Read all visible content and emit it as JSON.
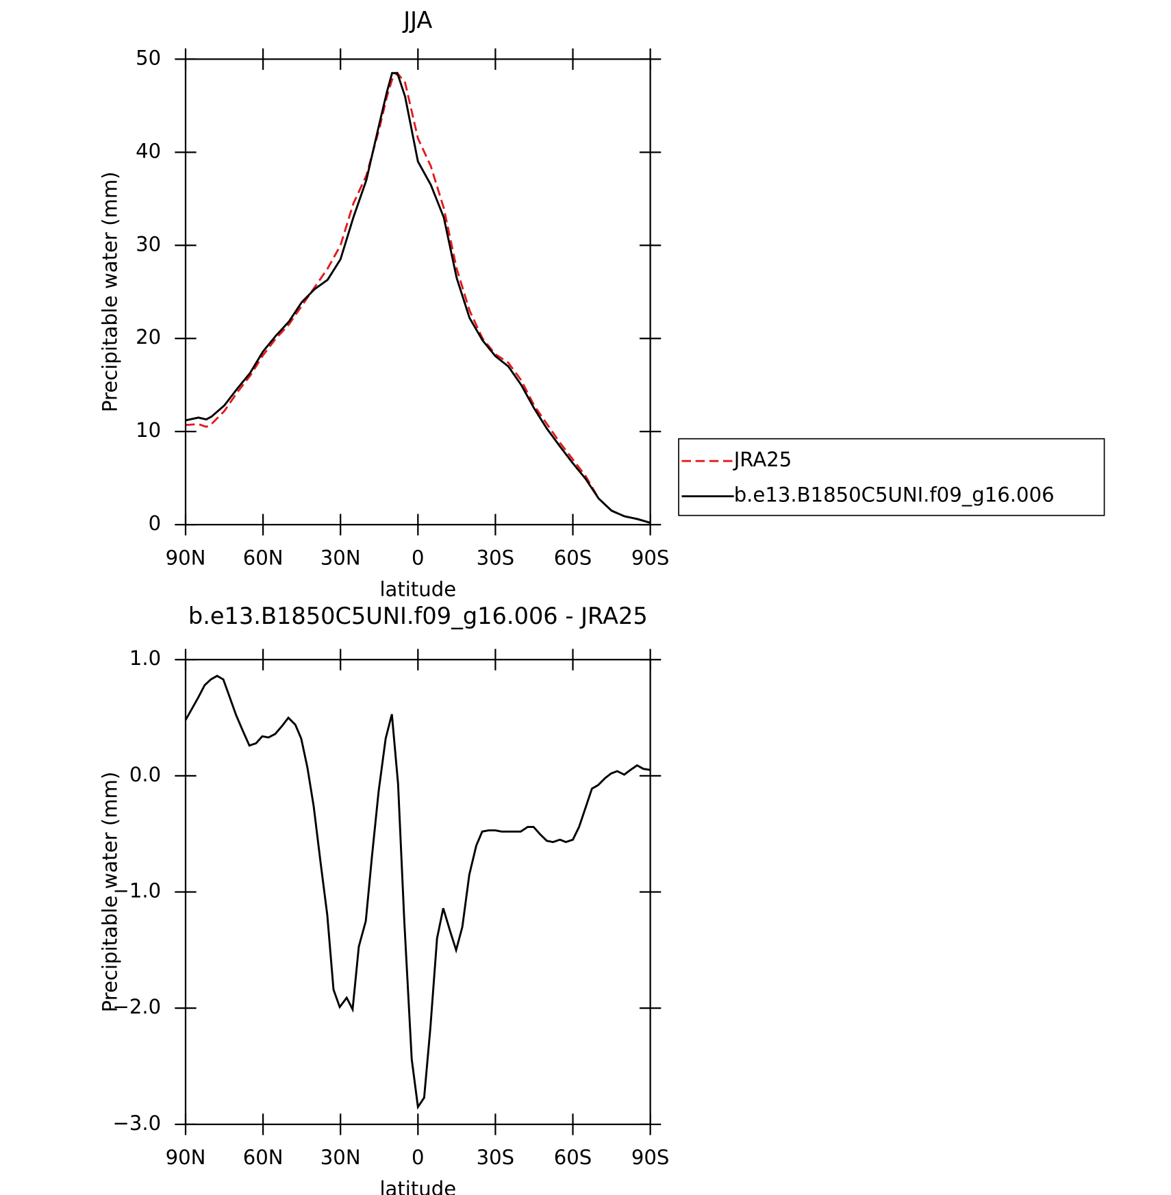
{
  "chart_data": [
    {
      "type": "line",
      "title": "JJA",
      "xlabel": "latitude",
      "ylabel": "Precipitable water (mm)",
      "x": [
        90,
        85,
        82,
        80,
        75,
        70,
        65,
        60,
        55,
        50,
        45,
        40,
        35,
        30,
        25,
        20,
        15,
        12,
        10,
        8,
        5,
        0,
        -5,
        -10,
        -15,
        -20,
        -25,
        -30,
        -35,
        -40,
        -45,
        -50,
        -55,
        -60,
        -65,
        -70,
        -75,
        -80,
        -85,
        -90
      ],
      "series": [
        {
          "name": "JRA25",
          "color": "#e41a1c",
          "dash": true,
          "values": [
            10.7,
            10.8,
            10.5,
            10.8,
            12.2,
            14.2,
            16.0,
            18.2,
            20.0,
            21.5,
            23.5,
            25.5,
            27.5,
            30.0,
            34.5,
            37.5,
            42.5,
            46.0,
            47.8,
            48.5,
            47.5,
            41.5,
            38.5,
            34.0,
            27.5,
            23.0,
            20.0,
            18.3,
            17.4,
            15.5,
            12.8,
            10.8,
            8.8,
            7.0,
            5.2,
            2.8,
            1.5,
            0.9,
            0.6,
            0.2
          ]
        },
        {
          "name": "b.e13.B1850C5UNI.f09_g16.006",
          "color": "#000000",
          "dash": false,
          "values": [
            11.2,
            11.5,
            11.3,
            11.6,
            12.8,
            14.6,
            16.3,
            18.6,
            20.3,
            21.8,
            23.9,
            25.3,
            26.3,
            28.5,
            33.0,
            37.0,
            43.0,
            46.5,
            48.5,
            48.5,
            46.0,
            39.0,
            36.5,
            33.0,
            26.5,
            22.2,
            19.8,
            18.1,
            17.0,
            15.0,
            12.5,
            10.3,
            8.4,
            6.6,
            4.9,
            2.8,
            1.5,
            0.9,
            0.6,
            0.2
          ]
        }
      ],
      "xlim": [
        90,
        -90
      ],
      "xticks": [
        {
          "value": 90,
          "label": "90N"
        },
        {
          "value": 60,
          "label": "60N"
        },
        {
          "value": 30,
          "label": "30N"
        },
        0,
        {
          "value": -30,
          "label": "30S"
        },
        {
          "value": -60,
          "label": "60S"
        },
        {
          "value": -90,
          "label": "90S"
        }
      ],
      "ylim": [
        0,
        50
      ],
      "yticks": [
        0,
        10,
        20,
        30,
        40,
        50
      ],
      "legend": "right"
    },
    {
      "type": "line",
      "title": "b.e13.B1850C5UNI.f09_g16.006 - JRA25",
      "xlabel": "latitude",
      "ylabel": "Precipitable water (mm)",
      "x": [
        90,
        85.2,
        82.6,
        80.2,
        77.8,
        75.4,
        72.8,
        70.4,
        67.7,
        65.3,
        62.7,
        60.3,
        57.9,
        55.3,
        52.6,
        50.2,
        47.5,
        45.2,
        42.8,
        40.4,
        37.7,
        35.1,
        32.7,
        30.3,
        27.6,
        25.3,
        22.9,
        20.2,
        17.8,
        15.2,
        12.5,
        10.1,
        7.7,
        5.3,
        2.4,
        0,
        -2.4,
        -4.8,
        -7.4,
        -9.8,
        -12.5,
        -14.8,
        -17.2,
        -19.9,
        -22.6,
        -24.9,
        -27.3,
        -30,
        -32.4,
        -35,
        -37.4,
        -39.8,
        -42.5,
        -44.8,
        -47.2,
        -49.9,
        -52.3,
        -55,
        -57.3,
        -60,
        -62.4,
        -64.7,
        -67.4,
        -69.8,
        -72.5,
        -74.8,
        -77.2,
        -79.9,
        -82.3,
        -84.9,
        -87.3,
        -90
      ],
      "series": [
        {
          "name": null,
          "color": "#000000",
          "dash": false,
          "values": [
            0.48,
            0.67,
            0.78,
            0.83,
            0.86,
            0.83,
            0.67,
            0.52,
            0.38,
            0.26,
            0.28,
            0.34,
            0.33,
            0.36,
            0.43,
            0.5,
            0.44,
            0.32,
            0.07,
            -0.26,
            -0.75,
            -1.2,
            -1.84,
            -1.99,
            -1.91,
            -2.01,
            -1.47,
            -1.25,
            -0.69,
            -0.13,
            0.32,
            0.53,
            -0.07,
            -1.25,
            -2.44,
            -2.85,
            -2.77,
            -2.17,
            -1.4,
            -1.14,
            -1.34,
            -1.5,
            -1.3,
            -0.85,
            -0.6,
            -0.48,
            -0.47,
            -0.47,
            -0.48,
            -0.48,
            -0.48,
            -0.48,
            -0.44,
            -0.44,
            -0.5,
            -0.56,
            -0.57,
            -0.55,
            -0.57,
            -0.55,
            -0.44,
            -0.29,
            -0.11,
            -0.08,
            -0.02,
            0.02,
            0.04,
            0.01,
            0.05,
            0.09,
            0.06,
            0.05
          ]
        }
      ],
      "xlim": [
        90,
        -90
      ],
      "xticks": [
        {
          "value": 90,
          "label": "90N"
        },
        {
          "value": 60,
          "label": "60N"
        },
        {
          "value": 30,
          "label": "30N"
        },
        0,
        {
          "value": -30,
          "label": "30S"
        },
        {
          "value": -60,
          "label": "60S"
        },
        {
          "value": -90,
          "label": "90S"
        }
      ],
      "ylim": [
        -3,
        1
      ],
      "yticks": [
        {
          "value": -3,
          "label": "−3.0"
        },
        {
          "value": -2,
          "label": "−2.0"
        },
        {
          "value": -1,
          "label": "−1.0"
        },
        {
          "value": 0,
          "label": "0.0"
        },
        {
          "value": 1,
          "label": "1.0"
        }
      ]
    }
  ]
}
